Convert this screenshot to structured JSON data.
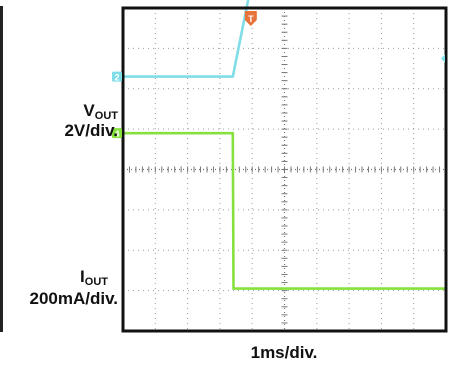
{
  "chart_data": {
    "type": "line",
    "title": "",
    "xlabel": "1ms/div.",
    "grid": true,
    "time_per_div_ms": 1,
    "divisions": {
      "x": 10,
      "y": 8
    },
    "trigger_marker": "T",
    "channels": [
      {
        "id": "2",
        "name_main": "V",
        "name_sub": "OUT",
        "scale": "2V/div.",
        "color": "#7fdde8",
        "units": "div",
        "points": [
          [
            0,
            6.3
          ],
          [
            3.4,
            6.3
          ],
          [
            4.2,
            9.5
          ],
          [
            4.35,
            9.75
          ],
          [
            10,
            9.75
          ]
        ]
      },
      {
        "id": "4",
        "name_main": "I",
        "name_sub": "OUT",
        "scale": "200mA/div.",
        "color": "#86e03e",
        "units": "div",
        "points": [
          [
            0,
            4.9
          ],
          [
            3.4,
            4.9
          ],
          [
            3.42,
            1.05
          ],
          [
            10,
            1.05
          ]
        ]
      }
    ],
    "left_panel_edge_color": "#222222"
  }
}
